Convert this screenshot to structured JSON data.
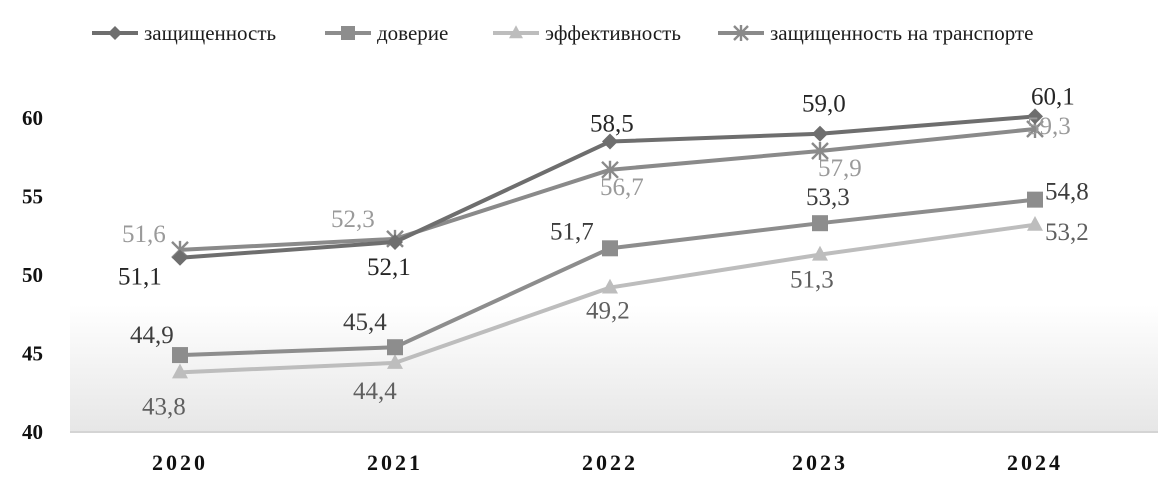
{
  "chart_data": {
    "type": "line",
    "title": "",
    "xlabel": "",
    "ylabel": "",
    "categories": [
      "2020",
      "2021",
      "2022",
      "2023",
      "2024"
    ],
    "ylim": [
      40,
      60
    ],
    "yticks": [
      40,
      45,
      50,
      55,
      60
    ],
    "grid": false,
    "legend_position": "top",
    "series": [
      {
        "name": "защищенность",
        "color": "#6e6e6e",
        "marker": "diamond",
        "values": [
          51.1,
          52.1,
          58.5,
          59.0,
          60.1
        ],
        "labels": [
          "51,1",
          "52,1",
          "58,5",
          "59,0",
          "60,1"
        ]
      },
      {
        "name": "доверие",
        "color": "#8d8d8d",
        "marker": "square",
        "values": [
          44.9,
          45.4,
          51.7,
          53.3,
          54.8
        ],
        "labels": [
          "44,9",
          "45,4",
          "51,7",
          "53,3",
          "54,8"
        ]
      },
      {
        "name": "эффективность",
        "color": "#bdbdbd",
        "marker": "triangle",
        "values": [
          43.8,
          44.4,
          49.2,
          51.3,
          53.2
        ],
        "labels": [
          "43,8",
          "44,4",
          "49,2",
          "51,3",
          "53,2"
        ]
      },
      {
        "name": "защищенность на транспорте",
        "color": "#8a8a8a",
        "marker": "x",
        "values": [
          51.6,
          52.3,
          56.7,
          57.9,
          59.3
        ],
        "labels": [
          "51,6",
          "52,3",
          "56,7",
          "57,9",
          "59,3"
        ]
      }
    ]
  }
}
